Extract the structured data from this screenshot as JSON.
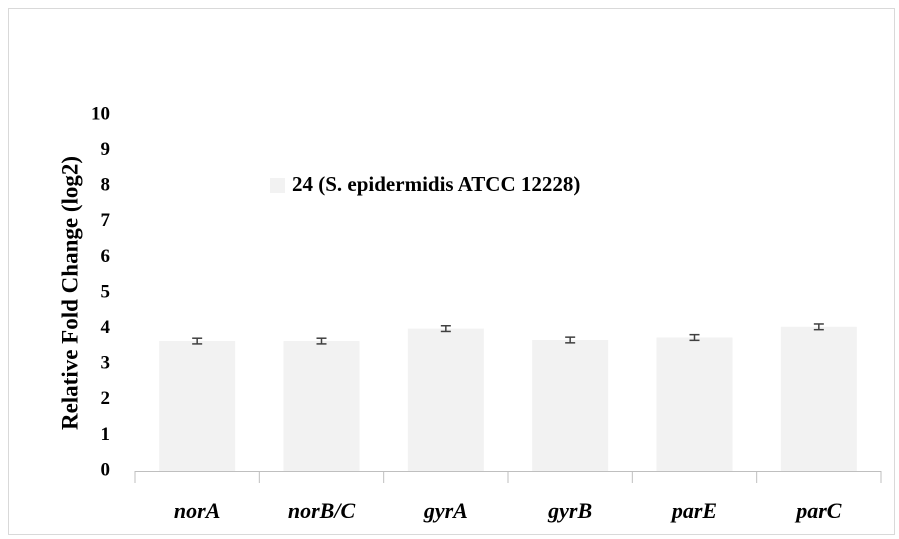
{
  "chart_data": {
    "type": "bar",
    "y_label": "Relative Fold Change (log2)",
    "categories": [
      "norA",
      "norB/C",
      "gyrA",
      "gyrB",
      "parE",
      "parC"
    ],
    "series": [
      {
        "name": "24 (S. epidermidis ATCC 12228)",
        "color": "#f2f2f2",
        "values": [
          3.65,
          3.65,
          4.0,
          3.68,
          3.75,
          4.05
        ],
        "errors": [
          0.08,
          0.08,
          0.08,
          0.08,
          0.08,
          0.08
        ]
      }
    ],
    "ylim": [
      0,
      10
    ],
    "yticks": [
      0,
      1,
      2,
      3,
      4,
      5,
      6,
      7,
      8,
      9,
      10
    ],
    "grid": false,
    "legend": "top"
  }
}
